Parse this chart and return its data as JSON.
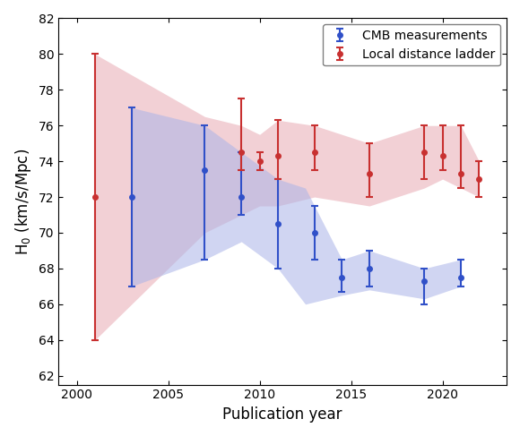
{
  "blue_x": [
    2003,
    2007,
    2009,
    2011,
    2013,
    2014.5,
    2016,
    2019,
    2021
  ],
  "blue_y": [
    72.0,
    73.5,
    72.0,
    70.5,
    70.0,
    67.5,
    68.0,
    67.3,
    67.5
  ],
  "blue_yerr_lo": [
    5.0,
    5.0,
    1.0,
    2.5,
    1.5,
    0.8,
    1.0,
    1.3,
    0.5
  ],
  "blue_yerr_hi": [
    5.0,
    2.5,
    2.5,
    2.5,
    1.5,
    1.0,
    1.0,
    0.7,
    1.0
  ],
  "red_x": [
    2001,
    2009,
    2010,
    2011,
    2013,
    2016,
    2019,
    2020,
    2021,
    2022
  ],
  "red_y": [
    72.0,
    74.5,
    74.0,
    74.3,
    74.5,
    73.3,
    74.5,
    74.3,
    73.3,
    73.0
  ],
  "red_yerr_lo": [
    8.0,
    1.0,
    0.5,
    1.3,
    1.0,
    1.3,
    1.5,
    0.8,
    0.8,
    1.0
  ],
  "red_yerr_hi": [
    8.0,
    3.0,
    0.5,
    2.0,
    1.5,
    1.7,
    1.5,
    1.7,
    2.7,
    1.0
  ],
  "blue_band_x": [
    2003,
    2007,
    2009,
    2011,
    2012.5,
    2014.5,
    2016,
    2019,
    2021
  ],
  "blue_band_lo": [
    67.0,
    68.5,
    69.5,
    68.0,
    66.0,
    66.5,
    66.8,
    66.3,
    67.0
  ],
  "blue_band_hi": [
    77.0,
    76.0,
    74.5,
    73.0,
    72.5,
    68.5,
    69.0,
    68.0,
    68.5
  ],
  "red_band_x": [
    2001,
    2007,
    2009,
    2010,
    2011,
    2013,
    2016,
    2019,
    2020,
    2021,
    2022
  ],
  "red_band_lo": [
    64.0,
    70.0,
    71.0,
    71.5,
    71.5,
    72.0,
    71.5,
    72.5,
    73.0,
    72.5,
    72.0
  ],
  "red_band_hi": [
    80.0,
    76.5,
    76.0,
    75.5,
    76.3,
    76.0,
    75.0,
    76.0,
    76.0,
    76.0,
    74.0
  ],
  "blue_color": "#3050c8",
  "red_color": "#c83030",
  "blue_fill": "#aab4e8",
  "red_fill": "#e8aab4",
  "xlabel": "Publication year",
  "ylabel": "H$_0$ (km/s/Mpc)",
  "ylim": [
    61.5,
    82
  ],
  "xlim": [
    1999,
    2023.5
  ],
  "legend_blue": "CMB measurements",
  "legend_red": "Local distance ladder",
  "xticks": [
    2000,
    2005,
    2010,
    2015,
    2020
  ],
  "yticks": [
    62,
    64,
    66,
    68,
    70,
    72,
    74,
    76,
    78,
    80,
    82
  ]
}
